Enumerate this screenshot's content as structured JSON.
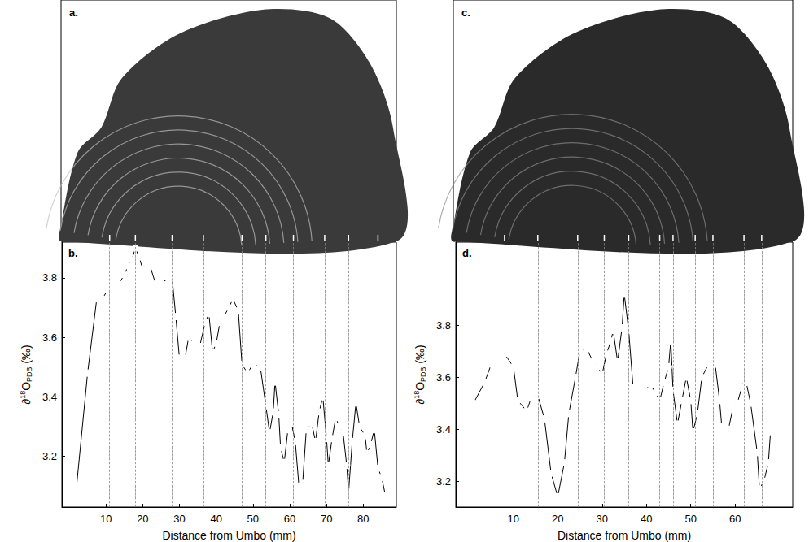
{
  "images": [
    {
      "label": "a."
    },
    {
      "label": "c."
    }
  ],
  "chart_data": [
    {
      "type": "line",
      "panel_label": "b.",
      "xlabel": "Distance from Umbo (mm)",
      "ylabel": "∂18O PDB (‰)",
      "marker": "open_circle",
      "color": "#000000",
      "grid": false,
      "xlim": [
        -2,
        89
      ],
      "xticks": [
        10,
        20,
        30,
        40,
        50,
        60,
        70,
        80
      ],
      "ylim": [
        3.03,
        3.92
      ],
      "yticks": [
        3.2,
        3.4,
        3.6,
        3.8
      ],
      "vlines": [
        11,
        18,
        28,
        36.5,
        47,
        53.5,
        61,
        69.5,
        76,
        84
      ],
      "x": [
        2,
        5,
        7.5,
        9,
        10.5,
        11.5,
        12.5,
        13.5,
        15,
        16,
        17,
        18,
        19,
        20,
        21,
        22,
        23.5,
        25,
        27,
        28,
        29,
        30,
        31.5,
        32.5,
        34,
        35.5,
        37,
        38,
        39,
        40,
        41,
        42,
        43.5,
        44.5,
        46,
        47,
        48.5,
        50,
        52,
        53.5,
        54.5,
        55.5,
        56,
        57,
        57.5,
        58.5,
        59.5,
        60.5,
        61.5,
        62.5,
        63.5,
        64.5,
        66,
        67,
        68,
        69,
        70,
        70.5,
        71.5,
        72.5,
        73.5,
        74.5,
        75.5,
        76,
        77,
        78,
        79,
        80.5,
        81,
        82,
        83,
        84,
        85,
        86
      ],
      "values": [
        3.1,
        3.48,
        3.73,
        3.73,
        3.76,
        3.78,
        3.77,
        3.78,
        3.81,
        3.84,
        3.86,
        3.9,
        3.87,
        3.83,
        3.85,
        3.84,
        3.78,
        3.78,
        3.8,
        3.8,
        3.67,
        3.53,
        3.53,
        3.6,
        3.58,
        3.57,
        3.65,
        3.68,
        3.55,
        3.58,
        3.65,
        3.67,
        3.7,
        3.73,
        3.69,
        3.51,
        3.48,
        3.51,
        3.5,
        3.37,
        3.28,
        3.35,
        3.45,
        3.34,
        3.23,
        3.18,
        3.29,
        3.31,
        3.25,
        3.1,
        3.11,
        3.29,
        3.31,
        3.25,
        3.35,
        3.4,
        3.26,
        3.17,
        3.26,
        3.33,
        3.3,
        3.28,
        3.17,
        3.08,
        3.25,
        3.38,
        3.3,
        3.27,
        3.21,
        3.24,
        3.29,
        3.16,
        3.13,
        3.07
      ]
    },
    {
      "type": "line",
      "panel_label": "d.",
      "xlabel": "Distance from Umbo (mm)",
      "ylabel": "∂18O PDB (‰)",
      "marker": "open_circle",
      "color": "#000000",
      "grid": false,
      "xlim": [
        -3,
        73
      ],
      "xticks": [
        10,
        20,
        30,
        40,
        50,
        60
      ],
      "ylim": [
        3.1,
        4.12
      ],
      "yticks": [
        3.2,
        3.4,
        3.6,
        3.8
      ],
      "vlines": [
        8,
        15.5,
        24.5,
        30.5,
        36,
        43,
        46,
        51,
        55,
        62,
        66
      ],
      "x": [
        1,
        3.5,
        5,
        6,
        7,
        8,
        10,
        11,
        13,
        14,
        15.5,
        17,
        18.5,
        20,
        21.5,
        22.5,
        24,
        25,
        26.5,
        28,
        29,
        30,
        31,
        32,
        32.5,
        33.5,
        34.5,
        35,
        36,
        37,
        38.5,
        39.5,
        41,
        42,
        43,
        44,
        45,
        45.5,
        46,
        47,
        48,
        49,
        50,
        50.5,
        51.5,
        52.5,
        54,
        55,
        55.5,
        56.5,
        57,
        57.5,
        58.5,
        59.5,
        60.5,
        61.5,
        62,
        62.5,
        63.5,
        65,
        65.5,
        66.5,
        67.5,
        68
      ],
      "values": [
        3.5,
        3.58,
        3.65,
        3.67,
        3.68,
        3.69,
        3.64,
        3.51,
        3.47,
        3.52,
        3.53,
        3.44,
        3.23,
        3.14,
        3.27,
        3.46,
        3.6,
        3.7,
        3.71,
        3.66,
        3.64,
        3.61,
        3.69,
        3.74,
        3.78,
        3.66,
        3.79,
        3.92,
        3.78,
        3.56,
        3.55,
        3.55,
        3.57,
        3.54,
        3.51,
        3.58,
        3.64,
        3.74,
        3.55,
        3.42,
        3.51,
        3.6,
        3.51,
        3.39,
        3.46,
        3.6,
        3.65,
        3.67,
        3.65,
        3.51,
        3.41,
        3.39,
        3.4,
        3.48,
        3.5,
        3.56,
        3.59,
        3.58,
        3.5,
        3.31,
        3.17,
        3.2,
        3.27,
        3.39
      ]
    }
  ]
}
